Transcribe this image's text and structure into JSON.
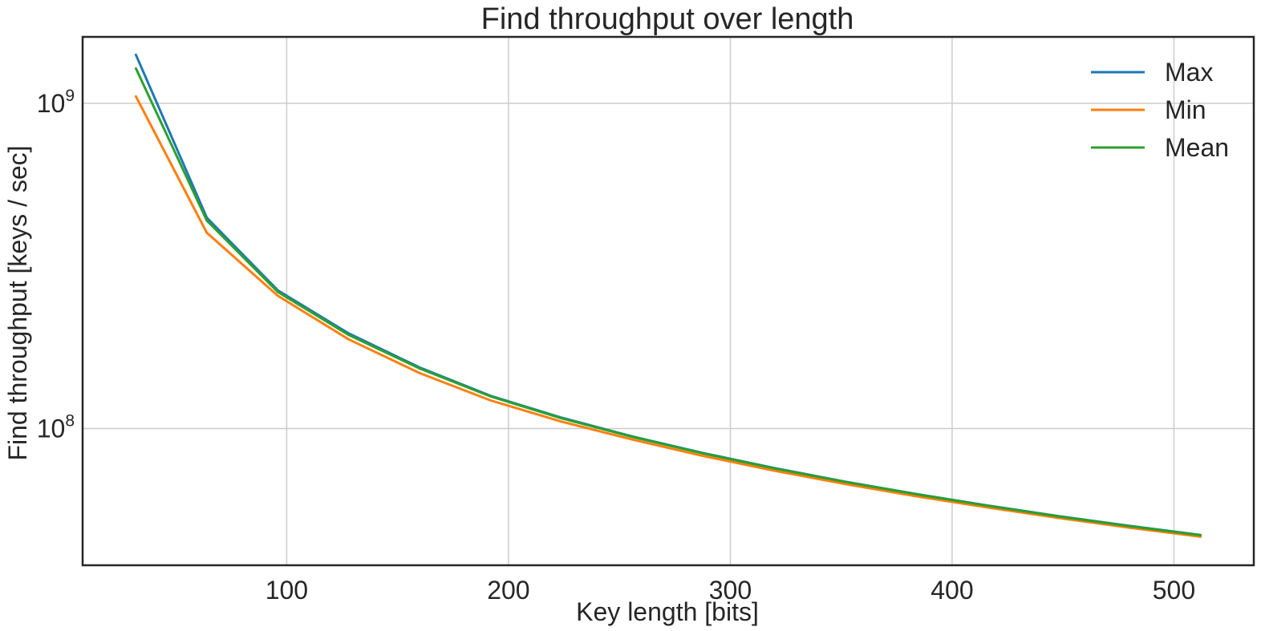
{
  "chart_data": {
    "type": "line",
    "title": "Find throughput over length",
    "xlabel": "Key length [bits]",
    "ylabel": "Find throughput [keys / sec]",
    "yscale": "log",
    "xlim": [
      8,
      536
    ],
    "ylim": [
      38000000,
      1600000000
    ],
    "grid": true,
    "legend_position": "top-right",
    "x_ticks": [
      {
        "value": 100,
        "label": "100"
      },
      {
        "value": 200,
        "label": "200"
      },
      {
        "value": 300,
        "label": "300"
      },
      {
        "value": 400,
        "label": "400"
      },
      {
        "value": 500,
        "label": "500"
      }
    ],
    "y_ticks": [
      {
        "value": 100000000,
        "base": "10",
        "exp": "8"
      },
      {
        "value": 1000000000,
        "base": "10",
        "exp": "9"
      }
    ],
    "x": [
      32,
      64,
      96,
      128,
      160,
      192,
      224,
      256,
      288,
      320,
      352,
      384,
      416,
      448,
      480,
      512
    ],
    "series": [
      {
        "name": "Max",
        "color": "#1f77b4",
        "values": [
          1410000000,
          445000000,
          266000000,
          196000000,
          154000000,
          126000000,
          108000000,
          94500000,
          84000000,
          75600000,
          68600000,
          62900000,
          58000000,
          53800000,
          50200000,
          47100000
        ]
      },
      {
        "name": "Min",
        "color": "#ff7f0e",
        "values": [
          1050000000,
          400000000,
          256000000,
          188000000,
          148000000,
          122000000,
          105000000,
          92500000,
          82300000,
          74200000,
          67500000,
          61900000,
          57200000,
          53100000,
          49600000,
          46500000
        ]
      },
      {
        "name": "Mean",
        "color": "#2ca02c",
        "values": [
          1280000000,
          436000000,
          263000000,
          194000000,
          153000000,
          125500000,
          107500000,
          94200000,
          83800000,
          75400000,
          68500000,
          62800000,
          57900000,
          53700000,
          50100000,
          47000000
        ]
      }
    ]
  }
}
